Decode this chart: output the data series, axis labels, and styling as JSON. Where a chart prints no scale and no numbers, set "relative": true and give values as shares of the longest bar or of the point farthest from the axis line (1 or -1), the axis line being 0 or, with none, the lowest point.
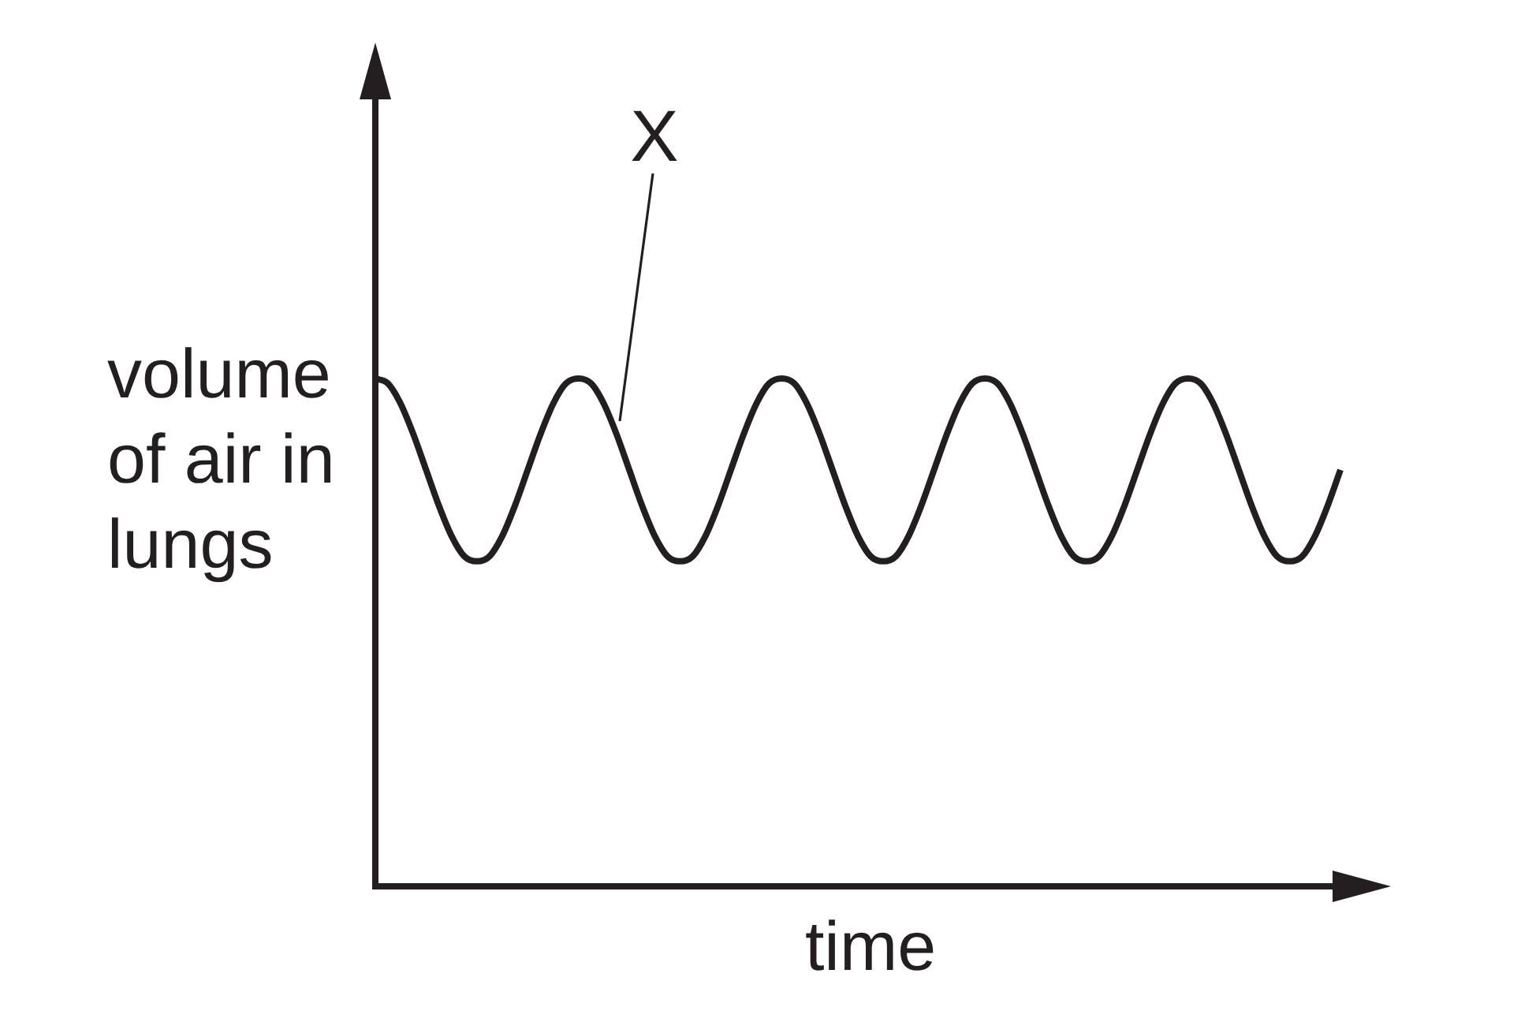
{
  "chart_data": {
    "type": "line",
    "relative": true,
    "xlabel": "time",
    "ylabel": "volume of air in lungs",
    "annotations": [
      "X"
    ],
    "marker": "none",
    "color": "#231f20",
    "categories": [
      null,
      null,
      null,
      null,
      null,
      null,
      null,
      null,
      null,
      null,
      null,
      null,
      null,
      null,
      null,
      null,
      null,
      null,
      null,
      null,
      null,
      null,
      null,
      null,
      null,
      null,
      null,
      null,
      null,
      null,
      null,
      null,
      null,
      null,
      null,
      null,
      null,
      null,
      null,
      null,
      null,
      null,
      null,
      null,
      null,
      null,
      null,
      null,
      null,
      null,
      null,
      null,
      null,
      null,
      null,
      null,
      null,
      null,
      null,
      null,
      null,
      null,
      null,
      null,
      null,
      null,
      null,
      null,
      null,
      null,
      null,
      null,
      null,
      null,
      null,
      null,
      null
    ],
    "values": [
      1,
      0.99,
      0.95,
      0.89,
      0.82,
      0.75,
      0.69,
      0.65,
      0.64,
      0.65,
      0.69,
      0.75,
      0.82,
      0.89,
      0.95,
      0.99,
      1,
      0.99,
      0.95,
      0.89,
      0.82,
      0.75,
      0.69,
      0.65,
      0.64,
      0.65,
      0.69,
      0.75,
      0.82,
      0.89,
      0.95,
      0.99,
      1,
      0.99,
      0.95,
      0.89,
      0.82,
      0.75,
      0.69,
      0.65,
      0.64,
      0.65,
      0.69,
      0.75,
      0.82,
      0.89,
      0.95,
      0.99,
      1,
      0.99,
      0.95,
      0.89,
      0.82,
      0.75,
      0.69,
      0.65,
      0.64,
      0.65,
      0.69,
      0.75,
      0.82,
      0.89,
      0.95,
      0.99,
      1,
      0.99,
      0.95,
      0.89,
      0.82,
      0.75,
      0.69,
      0.65,
      0.64,
      0.65,
      0.69,
      0.75,
      0.82
    ]
  }
}
